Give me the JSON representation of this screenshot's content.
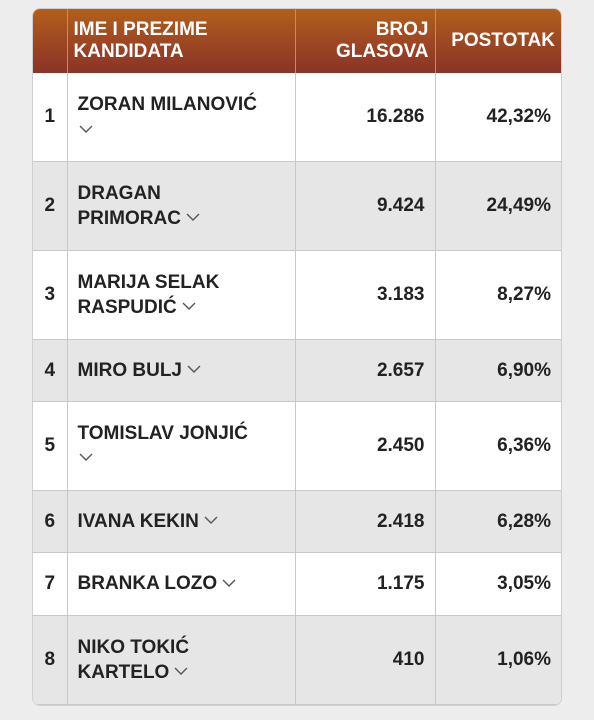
{
  "table": {
    "headers": {
      "name_line1": "IME I PREZIME",
      "name_line2": "KANDIDATA",
      "votes_line1": "BROJ",
      "votes_line2": "GLASOVA",
      "percent": "POSTOTAK"
    },
    "rows": [
      {
        "rank": "1",
        "name_line1": "ZORAN MILANOVIĆ",
        "name_line2": "",
        "votes": "16.286",
        "percent": "42,32%"
      },
      {
        "rank": "2",
        "name_line1": "DRAGAN",
        "name_line2": "PRIMORAC",
        "votes": "9.424",
        "percent": "24,49%"
      },
      {
        "rank": "3",
        "name_line1": "MARIJA SELAK",
        "name_line2": "RASPUDIĆ",
        "votes": "3.183",
        "percent": "8,27%"
      },
      {
        "rank": "4",
        "name_line1": "MIRO BULJ",
        "name_line2": "",
        "votes": "2.657",
        "percent": "6,90%"
      },
      {
        "rank": "5",
        "name_line1": "TOMISLAV JONJIĆ",
        "name_line2": "",
        "votes": "2.450",
        "percent": "6,36%"
      },
      {
        "rank": "6",
        "name_line1": "IVANA KEKIN",
        "name_line2": "",
        "votes": "2.418",
        "percent": "6,28%"
      },
      {
        "rank": "7",
        "name_line1": "BRANKA LOZO",
        "name_line2": "",
        "votes": "1.175",
        "percent": "3,05%"
      },
      {
        "rank": "8",
        "name_line1": "NIKO TOKIĆ",
        "name_line2": "KARTELO",
        "votes": "410",
        "percent": "1,06%"
      }
    ]
  },
  "colors": {
    "header_start": "#b2601a",
    "header_end": "#8a3328",
    "row_alt": "#e6e6e6",
    "text": "#222222"
  },
  "icons": {
    "expand": "chevron-down-icon"
  }
}
